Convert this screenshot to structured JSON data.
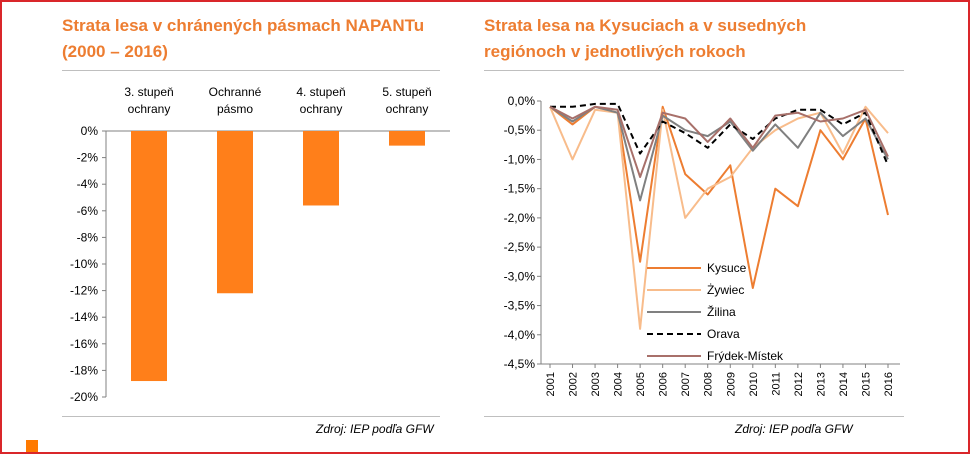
{
  "left_panel": {
    "title_line1": "Strata lesa v chránených pásmach NAPANTu",
    "title_line2": "(2000 – 2016)",
    "source": "Zdroj:  IEP podľa GFW"
  },
  "right_panel": {
    "title_line1": "Strata lesa na Kysuciach a v susedných",
    "title_line2": "regiónoch v jednotlivých rokoch",
    "source": "Zdroj:  IEP podľa GFW"
  },
  "colors": {
    "accent": "#ed7d31",
    "frame": "#d9262a",
    "corner": "#ff7a00"
  },
  "chart_data": [
    {
      "type": "bar",
      "title": "Strata lesa v chránených pásmach NAPANTu (2000 – 2016)",
      "categories": [
        [
          "3. stupeň",
          "ochrany"
        ],
        [
          "Ochranné",
          "pásmo"
        ],
        [
          "4. stupeň",
          "ochrany"
        ],
        [
          "5. stupeň",
          "ochrany"
        ]
      ],
      "values": [
        -18.8,
        -12.2,
        -5.6,
        -1.1
      ],
      "ylim": [
        -20,
        0
      ],
      "yticks": [
        0,
        -2,
        -4,
        -6,
        -8,
        -10,
        -12,
        -14,
        -16,
        -18,
        -20
      ],
      "ytick_labels": [
        "0%",
        "-2%",
        "-4%",
        "-6%",
        "-8%",
        "-10%",
        "-12%",
        "-14%",
        "-16%",
        "-18%",
        "-20%"
      ],
      "color": "#ff7f1a",
      "grid": false
    },
    {
      "type": "line",
      "title": "Strata lesa na Kysuciach a v susedných regiónoch v jednotlivých rokoch",
      "x": [
        "2001",
        "2002",
        "2003",
        "2004",
        "2005",
        "2006",
        "2007",
        "2008",
        "2009",
        "2010",
        "2011",
        "2012",
        "2013",
        "2014",
        "2015",
        "2016"
      ],
      "ylim": [
        -4.5,
        0
      ],
      "yticks": [
        0,
        -0.5,
        -1,
        -1.5,
        -2,
        -2.5,
        -3,
        -3.5,
        -4,
        -4.5
      ],
      "ytick_labels": [
        "0,0%",
        "-0,5%",
        "-1,0%",
        "-1,5%",
        "-2,0%",
        "-2,5%",
        "-3,0%",
        "-3,5%",
        "-4,0%",
        "-4,5%"
      ],
      "legend_position": "bottom-left",
      "grid": false,
      "series": [
        {
          "name": "Kysuce",
          "color": "#ed7d31",
          "dash": false,
          "values": [
            -0.1,
            -0.4,
            -0.1,
            -0.2,
            -2.75,
            -0.1,
            -1.25,
            -1.6,
            -1.1,
            -3.2,
            -1.5,
            -1.8,
            -0.5,
            -1.0,
            -0.3,
            -1.95
          ]
        },
        {
          "name": "Żywiec",
          "color": "#f8bc8b",
          "dash": false,
          "values": [
            -0.1,
            -1.0,
            -0.15,
            -0.2,
            -3.9,
            -0.15,
            -2.0,
            -1.5,
            -1.3,
            -0.8,
            -0.5,
            -0.3,
            -0.2,
            -0.9,
            -0.1,
            -0.55
          ]
        },
        {
          "name": "Žilina",
          "color": "#808080",
          "dash": false,
          "values": [
            -0.1,
            -0.35,
            -0.1,
            -0.2,
            -1.7,
            -0.25,
            -0.5,
            -0.6,
            -0.35,
            -0.85,
            -0.4,
            -0.8,
            -0.2,
            -0.6,
            -0.3,
            -1.0
          ]
        },
        {
          "name": "Orava",
          "color": "#000000",
          "dash": true,
          "values": [
            -0.1,
            -0.1,
            -0.05,
            -0.05,
            -0.9,
            -0.35,
            -0.55,
            -0.8,
            -0.4,
            -0.65,
            -0.3,
            -0.15,
            -0.15,
            -0.4,
            -0.2,
            -1.1
          ]
        },
        {
          "name": "Frýdek-Místek",
          "color": "#a8706a",
          "dash": false,
          "values": [
            -0.1,
            -0.3,
            -0.1,
            -0.15,
            -1.3,
            -0.2,
            -0.3,
            -0.7,
            -0.3,
            -0.8,
            -0.25,
            -0.2,
            -0.35,
            -0.3,
            -0.15,
            -0.95
          ]
        }
      ]
    }
  ]
}
